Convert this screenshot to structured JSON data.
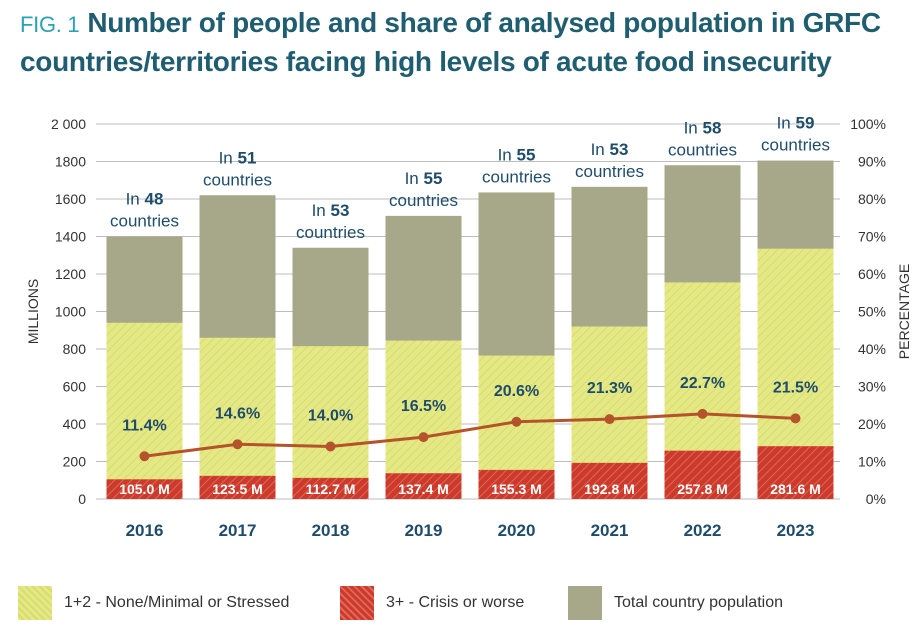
{
  "figure": {
    "label": "FIG. 1",
    "title": "Number of people and share of analysed population in GRFC countries/territories facing high levels of acute food insecurity"
  },
  "colors": {
    "title": "#1f5d70",
    "fig_label": "#2aa3b4",
    "total": "#a7a78a",
    "stressed": "#e5e985",
    "crisis": "#cc3a2b",
    "line": "#b5532a",
    "text_dark": "#1f4c6b"
  },
  "chart_data": {
    "type": "bar",
    "title": "Number of people and share of analysed population in GRFC countries/territories facing high levels of acute food insecurity",
    "xlabel": "",
    "ylabel": "MILLIONS",
    "y2label": "PERCENTAGE",
    "ylim": [
      0,
      2000
    ],
    "y2lim": [
      0,
      100
    ],
    "yticks": [
      "0",
      "200",
      "400",
      "600",
      "800",
      "1000",
      "1200",
      "1400",
      "1600",
      "1800",
      "2 000"
    ],
    "y2ticks": [
      "0%",
      "10%",
      "20%",
      "30%",
      "40%",
      "50%",
      "60%",
      "70%",
      "80%",
      "90%",
      "100%"
    ],
    "grid": true,
    "categories": [
      "2016",
      "2017",
      "2018",
      "2019",
      "2020",
      "2021",
      "2022",
      "2023"
    ],
    "country_prefix": "In",
    "country_suffix": "countries",
    "countries": [
      "48",
      "51",
      "53",
      "55",
      "55",
      "53",
      "58",
      "59"
    ],
    "series": [
      {
        "name": "Total country population",
        "type": "bar",
        "values": [
          1400,
          1620,
          1340,
          1510,
          1635,
          1665,
          1780,
          1805
        ]
      },
      {
        "name": "1+2 - None/Minimal or Stressed",
        "type": "bar",
        "values": [
          940,
          860,
          815,
          845,
          765,
          920,
          1155,
          1335
        ]
      },
      {
        "name": "3+ - Crisis or worse",
        "type": "bar",
        "values": [
          105.0,
          123.5,
          112.7,
          137.4,
          155.3,
          192.8,
          257.8,
          281.6
        ],
        "labels": [
          "105.0 M",
          "123.5 M",
          "112.7 M",
          "137.4 M",
          "155.3 M",
          "192.8 M",
          "257.8 M",
          "281.6 M"
        ]
      },
      {
        "name": "Share of analysed population (%)",
        "type": "line",
        "axis": "right",
        "values": [
          11.4,
          14.6,
          14.0,
          16.5,
          20.6,
          21.3,
          22.7,
          21.5
        ],
        "labels": [
          "11.4%",
          "14.6%",
          "14.0%",
          "16.5%",
          "20.6%",
          "21.3%",
          "22.7%",
          "21.5%"
        ]
      }
    ],
    "legend": [
      {
        "name": "1+2 - None/Minimal or Stressed",
        "key": "stressed"
      },
      {
        "name": "3+ - Crisis or worse",
        "key": "crisis"
      },
      {
        "name": "Total country population",
        "key": "total"
      }
    ],
    "legend_position": "bottom"
  }
}
